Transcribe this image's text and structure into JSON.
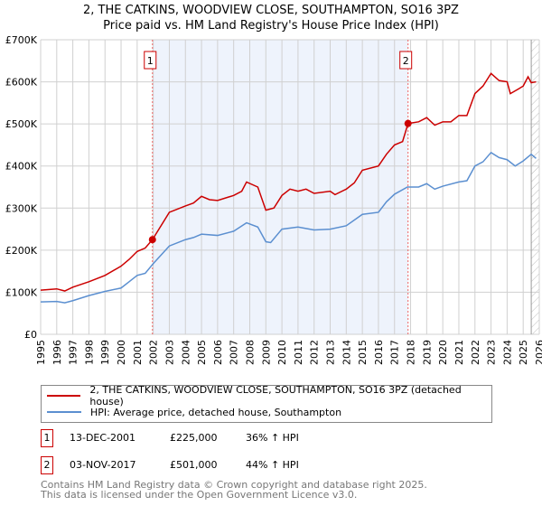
{
  "title": "2, THE CATKINS, WOODVIEW CLOSE, SOUTHAMPTON, SO16 3PZ",
  "subtitle": "Price paid vs. HM Land Registry's House Price Index (HPI)",
  "chart_data": {
    "type": "line",
    "xlim": [
      1995,
      2026
    ],
    "ylim": [
      0,
      700000
    ],
    "y_ticks": [
      {
        "v": 0,
        "label": "£0"
      },
      {
        "v": 100000,
        "label": "£100K"
      },
      {
        "v": 200000,
        "label": "£200K"
      },
      {
        "v": 300000,
        "label": "£300K"
      },
      {
        "v": 400000,
        "label": "£400K"
      },
      {
        "v": 500000,
        "label": "£500K"
      },
      {
        "v": 600000,
        "label": "£600K"
      },
      {
        "v": 700000,
        "label": "£700K"
      }
    ],
    "x_ticks": [
      "1995",
      "1996",
      "1997",
      "1998",
      "1999",
      "2000",
      "2001",
      "2002",
      "2003",
      "2004",
      "2005",
      "2006",
      "2007",
      "2008",
      "2009",
      "2010",
      "2011",
      "2012",
      "2013",
      "2014",
      "2015",
      "2016",
      "2017",
      "2018",
      "2019",
      "2020",
      "2021",
      "2022",
      "2023",
      "2024",
      "2025",
      "2026"
    ],
    "grid": true,
    "shaded_range": [
      2001.95,
      2017.84
    ],
    "hatched_from": 2025.5,
    "series": [
      {
        "name": "2, THE CATKINS, WOODVIEW CLOSE, SOUTHAMPTON, SO16 3PZ (detached house)",
        "color": "#cc0000",
        "x": [
          1995,
          1996,
          1996.5,
          1997,
          1998,
          1999,
          2000,
          2000.5,
          2001,
          2001.5,
          2001.95,
          2003,
          2004,
          2004.5,
          2005,
          2005.5,
          2006,
          2007,
          2007.5,
          2007.8,
          2008.5,
          2009,
          2009.5,
          2010,
          2010.5,
          2011,
          2011.5,
          2012,
          2013,
          2013.3,
          2014,
          2014.5,
          2015,
          2016,
          2016.5,
          2017,
          2017.5,
          2017.84,
          2018.5,
          2019,
          2019.5,
          2020,
          2020.5,
          2021,
          2021.5,
          2022,
          2022.5,
          2023,
          2023.5,
          2024,
          2024.2,
          2024.7,
          2025,
          2025.3,
          2025.5,
          2025.8
        ],
        "y": [
          105000,
          108000,
          103000,
          112000,
          125000,
          140000,
          162000,
          178000,
          197000,
          205000,
          225000,
          290000,
          305000,
          312000,
          328000,
          320000,
          318000,
          330000,
          340000,
          362000,
          350000,
          295000,
          300000,
          330000,
          345000,
          340000,
          345000,
          335000,
          340000,
          332000,
          345000,
          360000,
          390000,
          400000,
          428000,
          450000,
          458000,
          501000,
          505000,
          515000,
          497000,
          505000,
          505000,
          520000,
          520000,
          572000,
          590000,
          620000,
          603000,
          600000,
          572000,
          583000,
          590000,
          612000,
          598000,
          600000
        ]
      },
      {
        "name": "HPI: Average price, detached house, Southampton",
        "color": "#5b8fd0",
        "x": [
          1995,
          1996,
          1996.5,
          1997,
          1998,
          1999,
          2000,
          2000.5,
          2001,
          2001.5,
          2002,
          2003,
          2004,
          2004.5,
          2005,
          2006,
          2007,
          2007.8,
          2008.5,
          2009,
          2009.3,
          2010,
          2011,
          2012,
          2013,
          2014,
          2015,
          2016,
          2016.5,
          2017,
          2017.8,
          2018.5,
          2019,
          2019.5,
          2020,
          2021,
          2021.5,
          2022,
          2022.5,
          2023,
          2023.5,
          2024,
          2024.5,
          2025,
          2025.5,
          2025.8
        ],
        "y": [
          77000,
          78000,
          75000,
          80000,
          92000,
          102000,
          110000,
          125000,
          140000,
          145000,
          168000,
          210000,
          225000,
          230000,
          238000,
          235000,
          245000,
          265000,
          255000,
          220000,
          218000,
          250000,
          255000,
          248000,
          250000,
          258000,
          285000,
          290000,
          315000,
          333000,
          350000,
          350000,
          358000,
          345000,
          352000,
          362000,
          365000,
          400000,
          410000,
          432000,
          420000,
          415000,
          400000,
          412000,
          428000,
          418000
        ]
      }
    ],
    "sales": [
      {
        "id": "1",
        "x": 2001.95,
        "y": 225000
      },
      {
        "id": "2",
        "x": 2017.84,
        "y": 501000
      }
    ]
  },
  "legend": {
    "red": "2, THE CATKINS, WOODVIEW CLOSE, SOUTHAMPTON, SO16 3PZ (detached house)",
    "blue": "HPI: Average price, detached house, Southampton"
  },
  "transactions": [
    {
      "id": "1",
      "date": "13-DEC-2001",
      "price": "£225,000",
      "delta": "36% ↑ HPI"
    },
    {
      "id": "2",
      "date": "03-NOV-2017",
      "price": "£501,000",
      "delta": "44% ↑ HPI"
    }
  ],
  "footer": {
    "line1": "Contains HM Land Registry data © Crown copyright and database right 2025.",
    "line2": "This data is licensed under the Open Government Licence v3.0."
  }
}
